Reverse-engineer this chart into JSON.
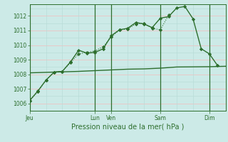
{
  "bg_color": "#cceae7",
  "grid_h_color": "#e8c8c8",
  "grid_v_color": "#b8ddd8",
  "line_color": "#2d6e2d",
  "title": "Pression niveau de la mer( hPa )",
  "ylim": [
    1005.5,
    1012.8
  ],
  "yticks": [
    1006,
    1007,
    1008,
    1009,
    1010,
    1011,
    1012
  ],
  "day_labels": [
    "Jeu",
    "Lun",
    "Ven",
    "Sam",
    "Dim"
  ],
  "day_positions": [
    0,
    8,
    10,
    16,
    22
  ],
  "x_max": 24,
  "vline_major_x": [
    0,
    8,
    10,
    16,
    22
  ],
  "vline_minor_x": [
    2,
    4,
    6,
    12,
    14,
    18,
    20
  ],
  "hline_major_y": [
    1006,
    1007,
    1008,
    1009,
    1010,
    1011,
    1012
  ],
  "hline_minor_y": [
    1006.5,
    1007.5,
    1008.5,
    1009.5,
    1010.5,
    1011.5,
    1012.5
  ],
  "line_dotted_x": [
    0,
    1,
    2,
    3,
    4,
    5,
    6,
    7,
    8,
    9,
    10,
    11,
    12,
    13,
    14,
    15,
    16,
    17
  ],
  "line_dotted_y": [
    1006.2,
    1006.8,
    1007.6,
    1008.15,
    1008.2,
    1008.8,
    1009.4,
    1009.5,
    1009.6,
    1009.9,
    1010.55,
    1011.05,
    1011.1,
    1011.45,
    1011.5,
    1011.15,
    1011.05,
    1012.05
  ],
  "line_solid_x": [
    0,
    1,
    2,
    3,
    4,
    5,
    6,
    7,
    8,
    9,
    10,
    11,
    12,
    13,
    14,
    15,
    16,
    17,
    18,
    19,
    20,
    21,
    22,
    23
  ],
  "line_solid_y": [
    1006.2,
    1006.85,
    1007.6,
    1008.15,
    1008.2,
    1008.85,
    1009.65,
    1009.45,
    1009.5,
    1009.75,
    1010.65,
    1011.05,
    1011.15,
    1011.55,
    1011.45,
    1011.2,
    1011.85,
    1011.95,
    1012.55,
    1012.65,
    1011.8,
    1009.75,
    1009.4,
    1008.6
  ],
  "line_flat_x": [
    0,
    6,
    8,
    10,
    12,
    14,
    16,
    18,
    22,
    24
  ],
  "line_flat_y": [
    1008.1,
    1008.2,
    1008.25,
    1008.3,
    1008.35,
    1008.37,
    1008.42,
    1008.5,
    1008.52,
    1008.55
  ]
}
